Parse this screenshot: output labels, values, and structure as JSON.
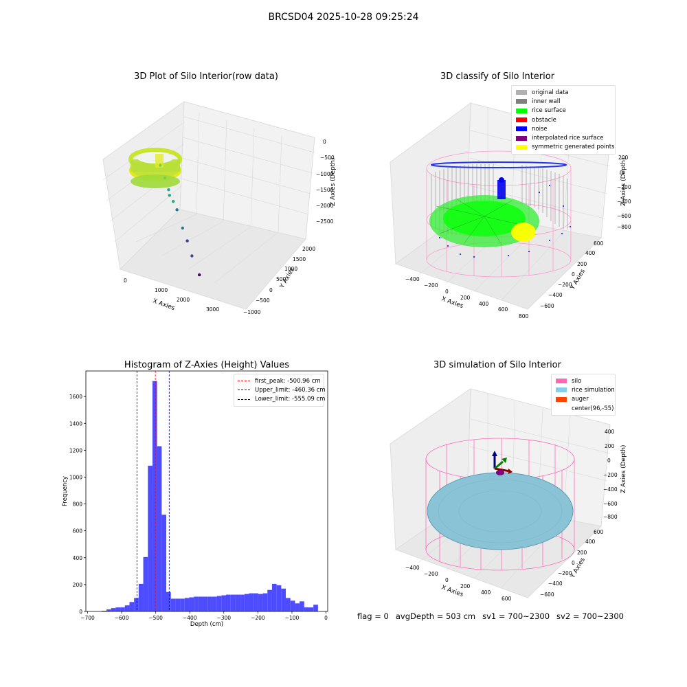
{
  "figure": {
    "suptitle": "BRCSD04 2025-10-28 09:25:24",
    "footer": {
      "flag": "flag = 0",
      "avg_depth": "avgDepth = 503 cm",
      "sv1": "sv1 = 700~2300",
      "sv2": "sv2 = 700~2300"
    }
  },
  "chart_data": [
    {
      "type": "scatter",
      "panel": "top-left",
      "title": "3D Plot of Silo Interior(row data)",
      "xlabel": "X Axies",
      "ylabel": "Y Axies",
      "zlabel": "Z Axies (Depth)",
      "x_ticks": [
        "0",
        "1000",
        "2000",
        "3000"
      ],
      "y_ticks": [
        "−1000",
        "−500",
        "0",
        "500",
        "1000",
        "1500",
        "2000"
      ],
      "z_ticks": [
        "0",
        "−500",
        "−1000",
        "−1500",
        "−2000",
        "−2500"
      ],
      "colormap": [
        "#fde725",
        "#7ad151",
        "#22a884",
        "#2a788e",
        "#414487",
        "#440154"
      ],
      "outliers": [
        {
          "x": 600,
          "y": 1200,
          "z": -600
        },
        {
          "x": 900,
          "y": 1000,
          "z": -800
        },
        {
          "x": 1100,
          "y": 900,
          "z": -1100
        },
        {
          "x": 1200,
          "y": 800,
          "z": -1200
        },
        {
          "x": 1400,
          "y": 700,
          "z": -1250
        },
        {
          "x": 1600,
          "y": 600,
          "z": -1400
        },
        {
          "x": 2000,
          "y": 300,
          "z": -1700
        },
        {
          "x": 2300,
          "y": 100,
          "z": -1900
        },
        {
          "x": 2600,
          "y": -100,
          "z": -2200
        },
        {
          "x": 3000,
          "y": -300,
          "z": -2600
        }
      ]
    },
    {
      "type": "scatter",
      "panel": "top-right",
      "title": "3D classify of Silo Interior",
      "xlabel": "X Axies",
      "ylabel": "Y Axies",
      "zlabel": "Z Axies (Depth)",
      "x_ticks": [
        "−400",
        "−200",
        "0",
        "200",
        "400",
        "600",
        "800"
      ],
      "y_ticks": [
        "−600",
        "−400",
        "−200",
        "0",
        "200",
        "400",
        "600"
      ],
      "z_ticks": [
        "200",
        "0",
        "−200",
        "−400",
        "−600",
        "−800"
      ],
      "legend": [
        {
          "label": "original data",
          "color": "#b0b0b0"
        },
        {
          "label": "inner wall",
          "color": "#808080"
        },
        {
          "label": "rice surface",
          "color": "#00ff00"
        },
        {
          "label": "obstacle",
          "color": "#ff0000"
        },
        {
          "label": "noise",
          "color": "#0000ff"
        },
        {
          "label": "interpolated rice surface",
          "color": "#800080"
        },
        {
          "label": "symmetric generated points",
          "color": "#ffff00"
        }
      ]
    },
    {
      "type": "bar",
      "panel": "bottom-left",
      "title": "Histogram of Z-Axies (Height) Values",
      "xlabel": "Depth (cm)",
      "ylabel": "Frequency",
      "xlim": [
        -705,
        5
      ],
      "ylim": [
        0,
        1790
      ],
      "x_ticks": [
        -700,
        -600,
        -500,
        -400,
        -300,
        -200,
        -100,
        0
      ],
      "x_tick_labels": [
        "−700",
        "−600",
        "−500",
        "−400",
        "−300",
        "−200",
        "−100",
        "0"
      ],
      "y_ticks": [
        0,
        200,
        400,
        600,
        800,
        1000,
        1200,
        1400,
        1600
      ],
      "bar_color": "#4d4dff",
      "bin_width": 13.5,
      "bin_start": -658,
      "values": [
        5,
        15,
        25,
        30,
        30,
        45,
        70,
        100,
        205,
        405,
        1085,
        1715,
        1230,
        720,
        145,
        95,
        95,
        95,
        100,
        105,
        110,
        110,
        110,
        110,
        110,
        115,
        120,
        125,
        125,
        125,
        125,
        130,
        135,
        135,
        130,
        135,
        160,
        205,
        195,
        170,
        100,
        80,
        60,
        75,
        30,
        30,
        50
      ],
      "lines": [
        {
          "label": "first_peak: -500.96 cm",
          "x": -500.96,
          "color": "#ff0000"
        },
        {
          "label": "Upper_limit: -460.36 cm",
          "x": -460.36,
          "color": "#00008b"
        },
        {
          "label": "Lower_limit: -555.09 cm",
          "x": -555.09,
          "color": "#00008b"
        }
      ]
    },
    {
      "type": "scatter",
      "panel": "bottom-right",
      "title": "3D simulation of Silo Interior",
      "xlabel": "X Axies",
      "ylabel": "Y Axies",
      "zlabel": "Z Axies (Depth)",
      "x_ticks": [
        "−400",
        "−200",
        "0",
        "200",
        "400",
        "600"
      ],
      "y_ticks": [
        "−600",
        "−400",
        "−200",
        "0",
        "200",
        "400",
        "600"
      ],
      "z_ticks": [
        "400",
        "200",
        "0",
        "−200",
        "−400",
        "−600",
        "−800"
      ],
      "legend": [
        {
          "label": "silo",
          "color": "#ff69b4"
        },
        {
          "label": "rice simulation",
          "color": "#87ceeb"
        },
        {
          "label": "auger",
          "color": "#ff4500"
        },
        {
          "label": "center(96,-55)",
          "color": ""
        }
      ]
    }
  ]
}
